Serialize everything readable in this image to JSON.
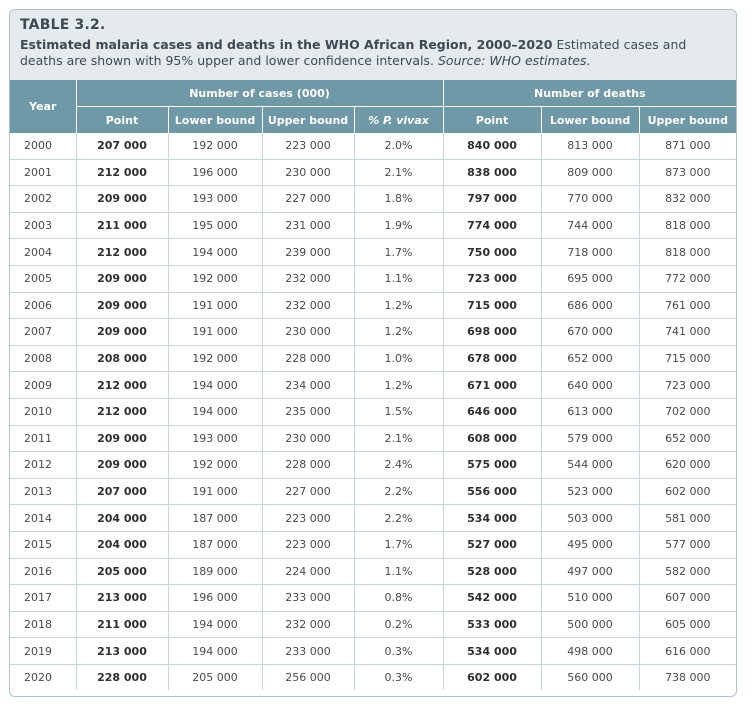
{
  "table": {
    "label": "TABLE 3.2.",
    "title": "Estimated malaria cases and deaths in the WHO African Region, 2000–2020",
    "description": "Estimated cases and deaths are shown with 95% upper and lower confidence intervals.",
    "source": "Source: WHO estimates.",
    "headers": {
      "year": "Year",
      "cases_group": "Number of cases (000)",
      "deaths_group": "Number of deaths",
      "case_point": "Point",
      "case_lower": "Lower bound",
      "case_upper": "Upper  bound",
      "vivax": "% P. vivax",
      "death_point": "Point",
      "death_lower": "Lower bound",
      "death_upper": "Upper bound"
    },
    "rows": [
      [
        "2000",
        "207 000",
        "192 000",
        "223 000",
        "2.0%",
        "840 000",
        "813 000",
        "871 000"
      ],
      [
        "2001",
        "212 000",
        "196 000",
        "230 000",
        "2.1%",
        "838 000",
        "809 000",
        "873 000"
      ],
      [
        "2002",
        "209 000",
        "193 000",
        "227 000",
        "1.8%",
        "797 000",
        "770 000",
        "832 000"
      ],
      [
        "2003",
        "211 000",
        "195 000",
        "231 000",
        "1.9%",
        "774 000",
        "744 000",
        "818 000"
      ],
      [
        "2004",
        "212 000",
        "194 000",
        "239 000",
        "1.7%",
        "750 000",
        "718 000",
        "818 000"
      ],
      [
        "2005",
        "209 000",
        "192 000",
        "232 000",
        "1.1%",
        "723 000",
        "695 000",
        "772 000"
      ],
      [
        "2006",
        "209 000",
        "191 000",
        "232 000",
        "1.2%",
        "715 000",
        "686 000",
        "761 000"
      ],
      [
        "2007",
        "209 000",
        "191 000",
        "230 000",
        "1.2%",
        "698 000",
        "670 000",
        "741 000"
      ],
      [
        "2008",
        "208 000",
        "192 000",
        "228 000",
        "1.0%",
        "678 000",
        "652 000",
        "715 000"
      ],
      [
        "2009",
        "212 000",
        "194 000",
        "234 000",
        "1.2%",
        "671 000",
        "640 000",
        "723 000"
      ],
      [
        "2010",
        "212 000",
        "194 000",
        "235 000",
        "1.5%",
        "646 000",
        "613 000",
        "702 000"
      ],
      [
        "2011",
        "209 000",
        "193 000",
        "230 000",
        "2.1%",
        "608 000",
        "579 000",
        "652 000"
      ],
      [
        "2012",
        "209 000",
        "192 000",
        "228 000",
        "2.4%",
        "575 000",
        "544 000",
        "620 000"
      ],
      [
        "2013",
        "207 000",
        "191 000",
        "227 000",
        "2.2%",
        "556 000",
        "523 000",
        "602 000"
      ],
      [
        "2014",
        "204 000",
        "187 000",
        "223 000",
        "2.2%",
        "534 000",
        "503 000",
        "581 000"
      ],
      [
        "2015",
        "204 000",
        "187 000",
        "223 000",
        "1.7%",
        "527 000",
        "495 000",
        "577 000"
      ],
      [
        "2016",
        "205 000",
        "189 000",
        "224 000",
        "1.1%",
        "528 000",
        "497 000",
        "582 000"
      ],
      [
        "2017",
        "213 000",
        "196 000",
        "233 000",
        "0.8%",
        "542 000",
        "510 000",
        "607 000"
      ],
      [
        "2018",
        "211 000",
        "194 000",
        "232 000",
        "0.2%",
        "533 000",
        "500 000",
        "605 000"
      ],
      [
        "2019",
        "213 000",
        "194 000",
        "233 000",
        "0.3%",
        "534 000",
        "498 000",
        "616 000"
      ],
      [
        "2020",
        "228 000",
        "205 000",
        "256 000",
        "0.3%",
        "602 000",
        "560 000",
        "738 000"
      ]
    ]
  },
  "colors": {
    "caption_bg": "#e5eaee",
    "header_bg": "#6f99a7",
    "border": "#a9c3cb"
  }
}
